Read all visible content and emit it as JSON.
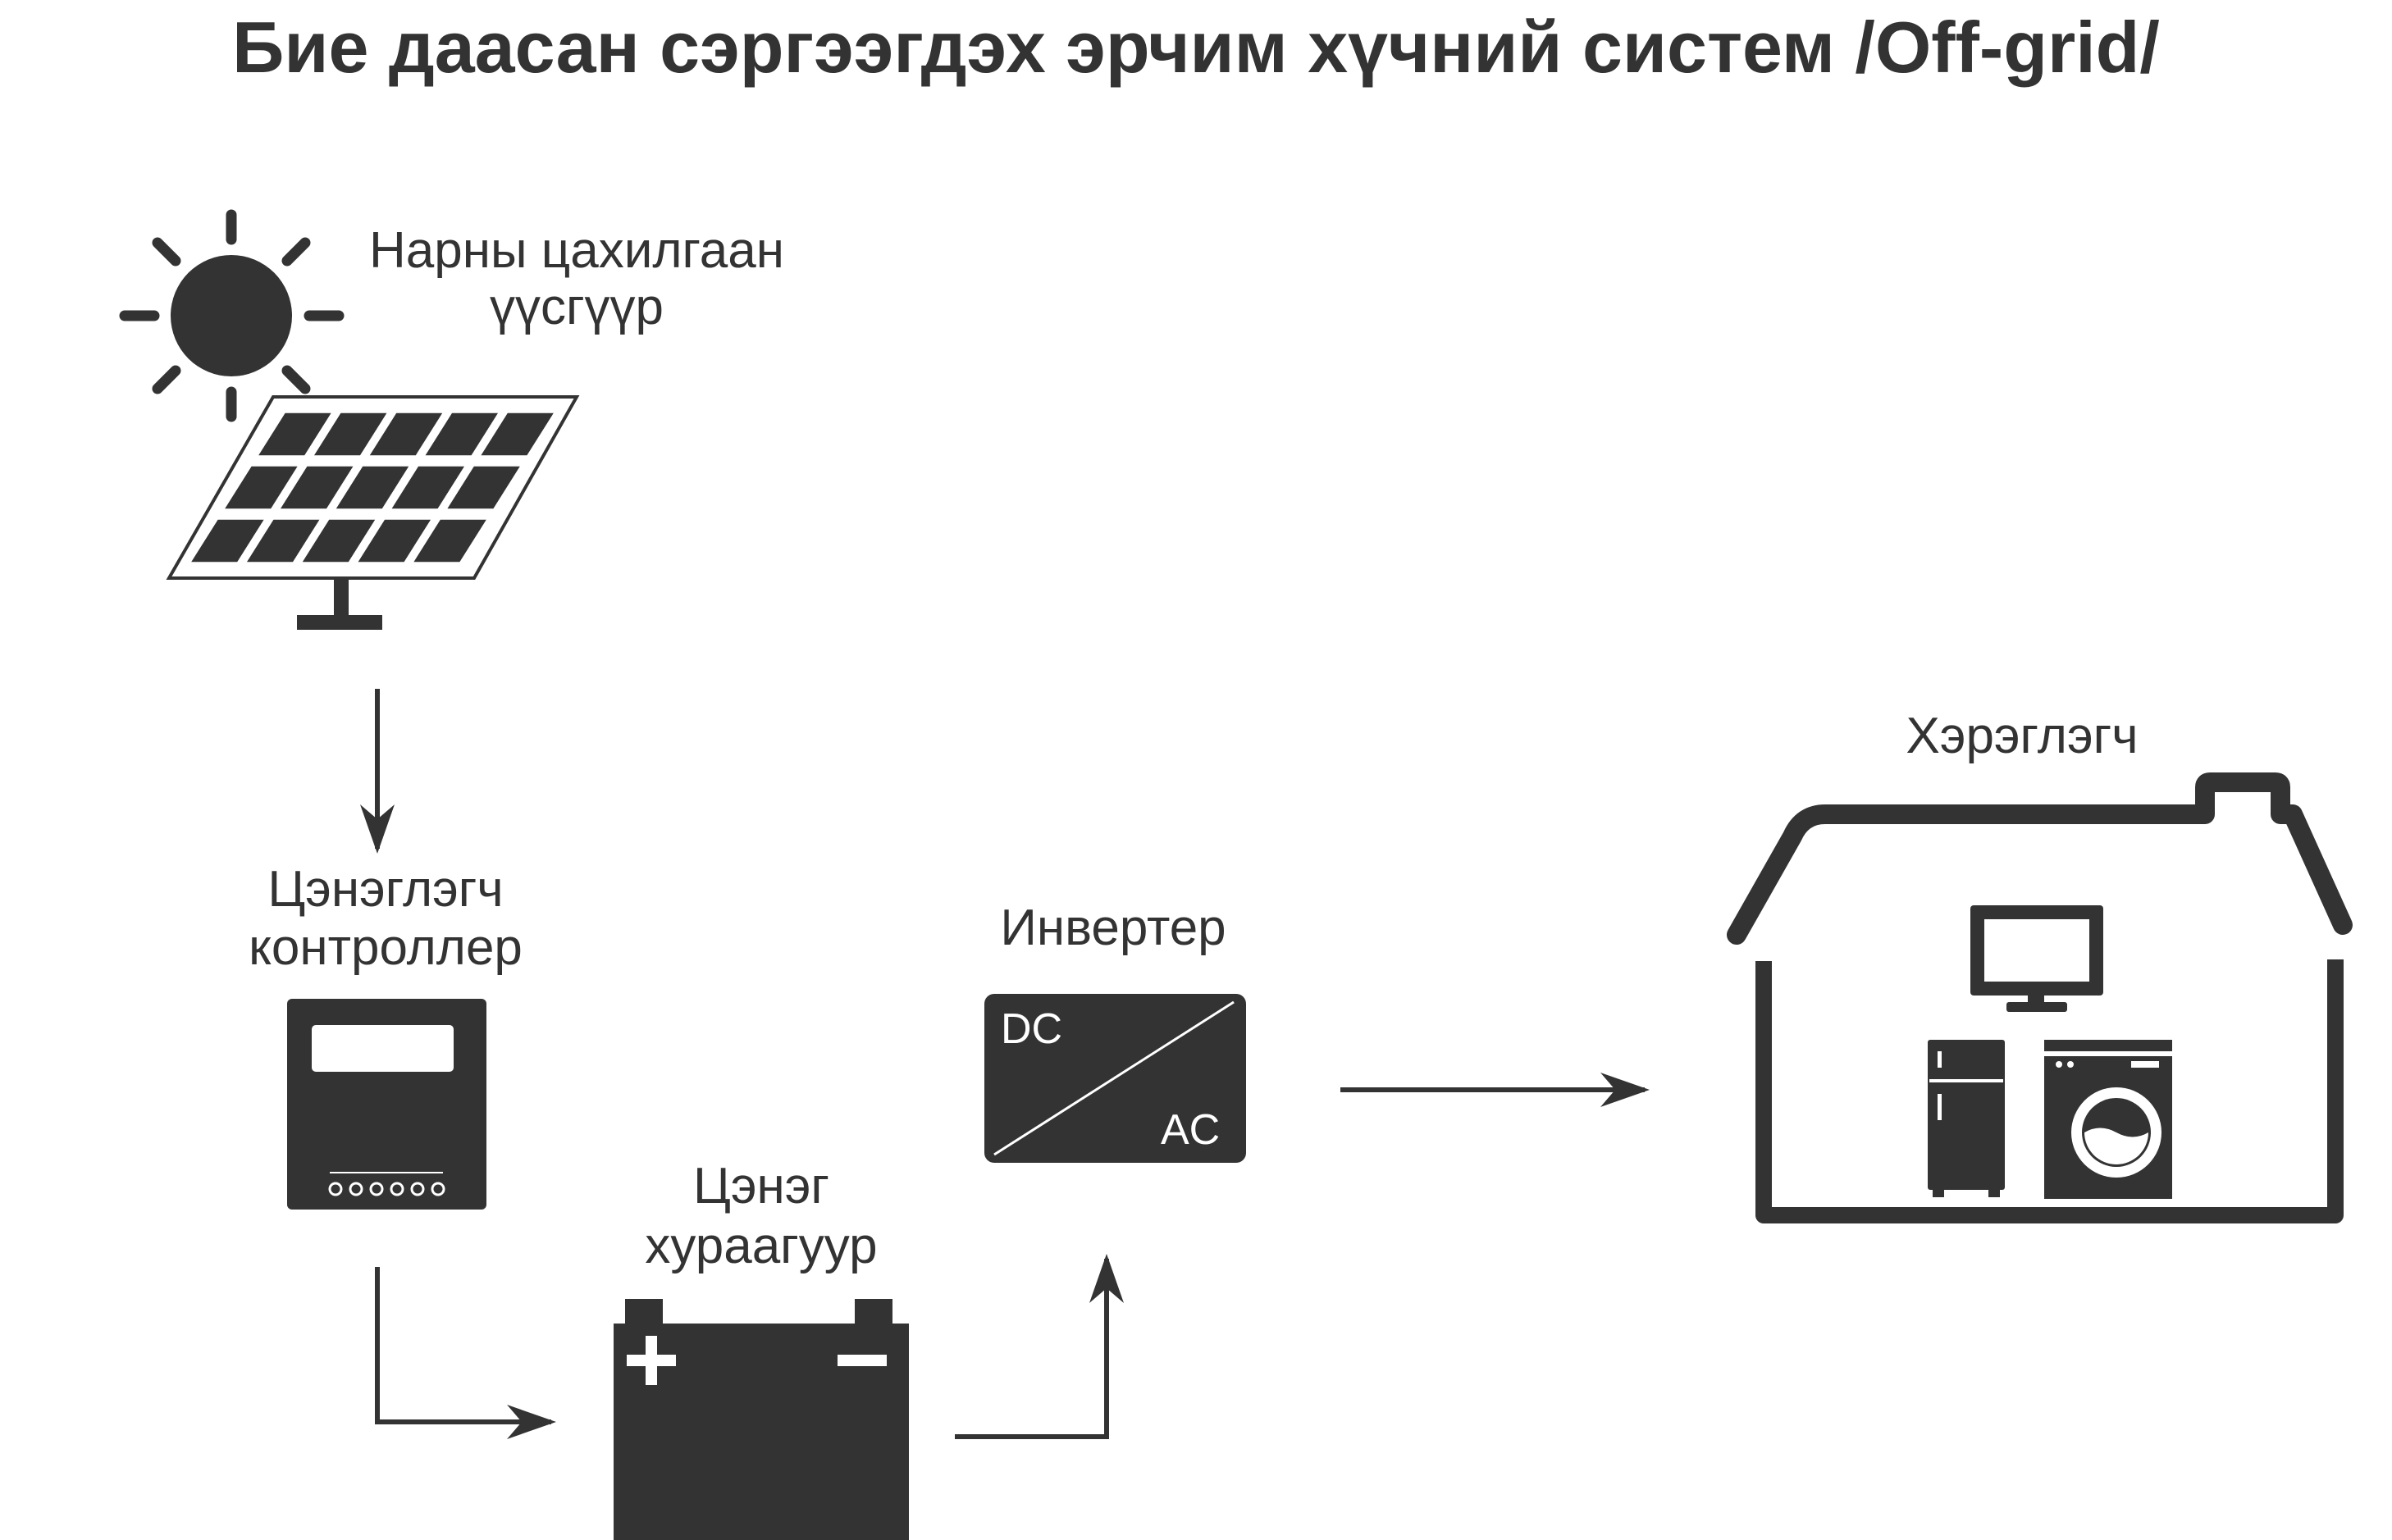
{
  "title": "Бие даасан сэргээгдэх эрчим хүчний систем /Off-grid/",
  "solar": {
    "label_line1": "Нарны цахилгаан",
    "label_line2": "үүсгүүр",
    "icon": "solar-panel-icon"
  },
  "controller": {
    "label_line1": "Цэнэглэгч",
    "label_line2": "контроллер",
    "icon": "charge-controller-icon"
  },
  "battery": {
    "label_line1": "Цэнэг",
    "label_line2": "хураагуур",
    "icon": "battery-icon"
  },
  "inverter": {
    "label": "Инвертер",
    "dc": "DC",
    "ac": "AC",
    "icon": "inverter-icon"
  },
  "consumer": {
    "label": "Хэрэглэгч",
    "icon": "house-icon"
  },
  "colors": {
    "ink": "#333333",
    "background": "#ffffff"
  }
}
